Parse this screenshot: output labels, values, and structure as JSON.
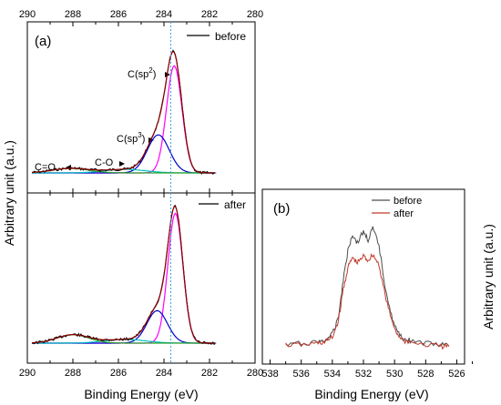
{
  "figure": {
    "panel_a": {
      "label": "(a)",
      "xlabel": "Binding Energy (eV)",
      "ylabel": "Arbitrary unit (a.u.)",
      "xlim": [
        290,
        280
      ],
      "xticks": [
        "290",
        "288",
        "286",
        "284",
        "282",
        "280"
      ],
      "top": {
        "legend": "before",
        "annotations": [
          {
            "base": "C(sp",
            "sup": "2",
            "tail": ")",
            "x": 284.8,
            "y": 1.0
          },
          {
            "base": "C(sp",
            "sup": "3",
            "tail": ")",
            "x": 285.4,
            "y": 0.62
          },
          {
            "base": "C-O",
            "sup": "",
            "tail": "",
            "x": 286.8,
            "y": 0.26
          },
          {
            "base": "C=O",
            "sup": "",
            "tail": "",
            "x": 289.1,
            "y": 0.22
          }
        ]
      },
      "bottom": {
        "legend": "after"
      },
      "reference_line_x": 283.7
    },
    "panel_b": {
      "label": "(b)",
      "xlabel": "Binding Energy (eV)",
      "ylabel": "Arbitrary unit (a.u.)",
      "xlim": [
        538.5,
        525.5
      ],
      "xticks": [
        "538",
        "536",
        "534",
        "532",
        "530",
        "528",
        "526"
      ],
      "legend": [
        "before",
        "after"
      ]
    }
  },
  "chart_data": [
    {
      "type": "line",
      "title": "(a) before",
      "xlabel": "Binding Energy (eV)",
      "ylabel": "Arbitrary unit (a.u.)",
      "x_range": [
        290,
        280
      ],
      "y_range": [
        0,
        1.35
      ],
      "grid": false,
      "legend_position": "top-right",
      "series_color": {
        "measured": "#000000",
        "envelope": "#8b0000",
        "C=C sp2": "#ff00ff",
        "C-C sp3": "#0000cc",
        "C-O": "#00c0c0",
        "C=O": "#2ca02c",
        "baseline": "#00b7eb"
      },
      "series": [
        {
          "name": "before",
          "x": [
            289.8,
            289.0,
            288.5,
            288.0,
            287.5,
            287.0,
            286.5,
            286.0,
            285.5,
            285.0,
            284.5,
            284.2,
            284.0,
            283.8,
            283.6,
            283.4,
            283.2,
            283.0,
            282.6,
            282.2,
            281.7
          ],
          "y": [
            0.04,
            0.06,
            0.08,
            0.1,
            0.08,
            0.08,
            0.09,
            0.12,
            0.16,
            0.24,
            0.42,
            0.62,
            0.82,
            1.05,
            1.18,
            1.1,
            0.85,
            0.55,
            0.2,
            0.06,
            0.02
          ]
        },
        {
          "name": "C(sp2)",
          "peak_center": 283.55,
          "amplitude": 1.07,
          "sigma": 0.34
        },
        {
          "name": "C(sp3)",
          "peak_center": 284.25,
          "amplitude": 0.38,
          "sigma": 0.48
        },
        {
          "name": "C-O",
          "peak_center": 285.7,
          "amplitude": 0.035,
          "sigma": 0.9
        },
        {
          "name": "C=O",
          "peak_center": 288.1,
          "amplitude": 0.045,
          "sigma": 0.8
        }
      ]
    },
    {
      "type": "line",
      "title": "(a) after",
      "xlabel": "Binding Energy (eV)",
      "ylabel": "Arbitrary unit (a.u.)",
      "x_range": [
        290,
        280
      ],
      "y_range": [
        0,
        1.35
      ],
      "grid": false,
      "legend_position": "top-right",
      "series": [
        {
          "name": "after",
          "x": [
            289.8,
            289.0,
            288.5,
            288.0,
            287.5,
            287.0,
            286.5,
            286.0,
            285.5,
            285.0,
            284.5,
            284.2,
            284.0,
            283.8,
            283.6,
            283.4,
            283.2,
            283.0,
            282.6,
            282.2,
            281.7
          ],
          "y": [
            0.02,
            0.04,
            0.07,
            0.1,
            0.08,
            0.06,
            0.07,
            0.1,
            0.14,
            0.22,
            0.4,
            0.62,
            0.85,
            1.1,
            1.25,
            1.22,
            0.95,
            0.6,
            0.2,
            0.06,
            0.02
          ]
        },
        {
          "name": "C(sp2)",
          "peak_center": 283.5,
          "amplitude": 1.24,
          "sigma": 0.33
        },
        {
          "name": "C(sp3)",
          "peak_center": 284.3,
          "amplitude": 0.31,
          "sigma": 0.45
        },
        {
          "name": "C-O",
          "peak_center": 285.7,
          "amplitude": 0.035,
          "sigma": 0.9
        },
        {
          "name": "C=O",
          "peak_center": 288.0,
          "amplitude": 0.08,
          "sigma": 0.7
        }
      ]
    },
    {
      "type": "line",
      "title": "(b)",
      "xlabel": "Binding Energy (eV)",
      "ylabel": "Arbitrary unit (a.u.)",
      "x_range": [
        538.5,
        525.5
      ],
      "y_range": [
        0,
        1.0
      ],
      "grid": false,
      "legend_position": "top-left",
      "series": [
        {
          "name": "before",
          "color": "#4d4d4d",
          "x": [
            537.0,
            536.0,
            535.0,
            534.5,
            534.0,
            533.6,
            533.3,
            533.0,
            532.7,
            532.4,
            532.0,
            531.7,
            531.4,
            531.0,
            530.6,
            530.2,
            529.8,
            529.4,
            529.0,
            528.0,
            527.0,
            526.5
          ],
          "y": [
            0.1,
            0.11,
            0.12,
            0.13,
            0.17,
            0.3,
            0.55,
            0.75,
            0.86,
            0.8,
            0.88,
            0.82,
            0.9,
            0.78,
            0.5,
            0.3,
            0.18,
            0.14,
            0.13,
            0.11,
            0.1,
            0.09
          ]
        },
        {
          "name": "after",
          "color": "#c0392b",
          "x": [
            537.0,
            536.0,
            535.0,
            534.5,
            534.0,
            533.6,
            533.3,
            533.0,
            532.7,
            532.4,
            532.0,
            531.7,
            531.4,
            531.0,
            530.6,
            530.2,
            529.8,
            529.4,
            529.0,
            528.0,
            527.0,
            526.5
          ],
          "y": [
            0.1,
            0.1,
            0.11,
            0.12,
            0.15,
            0.27,
            0.48,
            0.63,
            0.7,
            0.66,
            0.71,
            0.68,
            0.72,
            0.65,
            0.44,
            0.27,
            0.17,
            0.13,
            0.12,
            0.1,
            0.09,
            0.09
          ]
        }
      ]
    }
  ]
}
